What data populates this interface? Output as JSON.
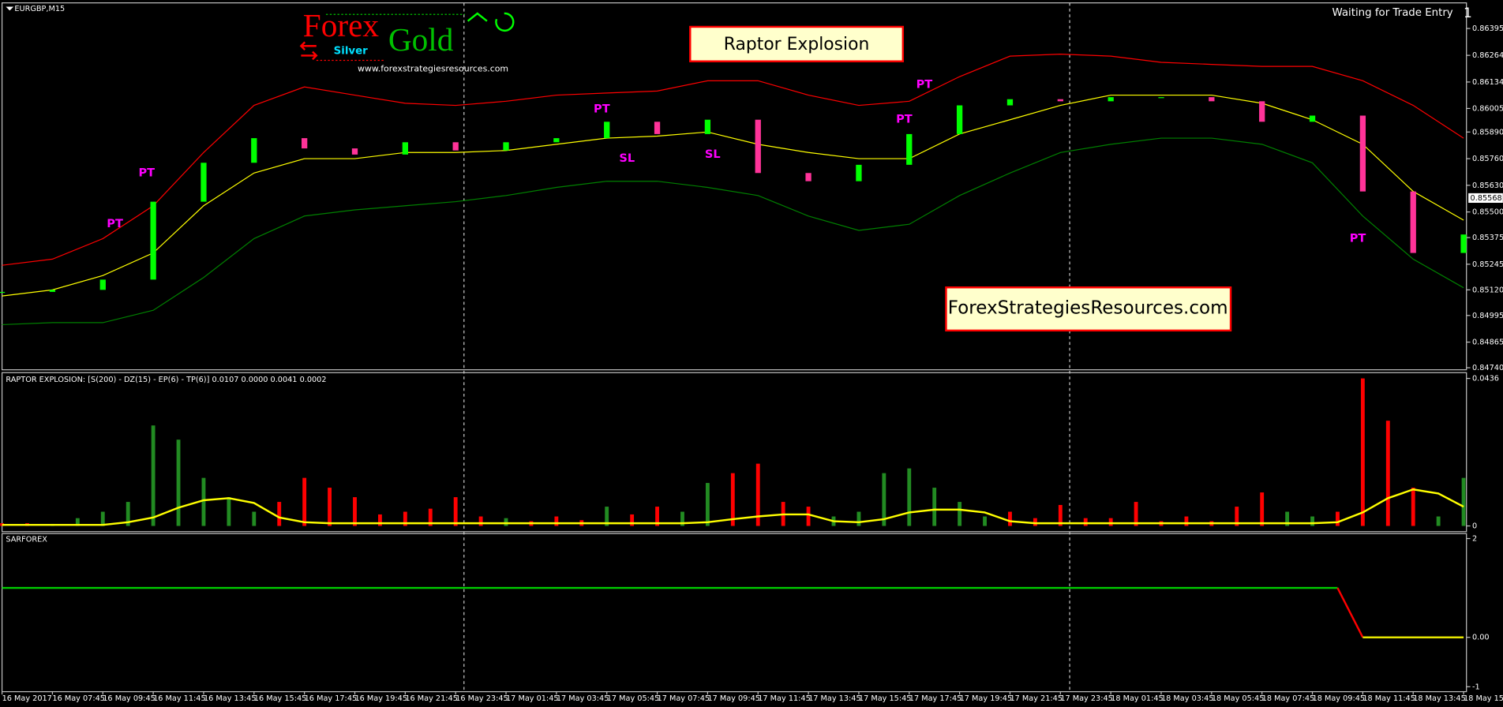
{
  "chart_data": [
    {
      "type": "candle",
      "title": "EURGBP,M15",
      "status": "Waiting for Trade Entry",
      "corner": "1",
      "banner": "Raptor Explosion",
      "watermark": "ForexStrategiesResources.com",
      "logo": {
        "forex": "Forex",
        "gold": "Gold",
        "silver": "Silver",
        "url": "www.forexstrategiesresources.com"
      },
      "categories": [
        "16 May 2017",
        "16 May 07:45",
        "16 May 09:45",
        "16 May 11:45",
        "16 May 13:45",
        "16 May 15:45",
        "16 May 17:45",
        "16 May 19:45",
        "16 May 21:45",
        "16 May 23:45",
        "17 May 01:45",
        "17 May 03:45",
        "17 May 05:45",
        "17 May 07:45",
        "17 May 09:45",
        "17 May 11:45",
        "17 May 13:45",
        "17 May 15:45",
        "17 May 17:45",
        "17 May 19:45",
        "17 May 21:45",
        "17 May 23:45",
        "18 May 01:45",
        "18 May 03:45",
        "18 May 05:45",
        "18 May 07:45",
        "18 May 09:45",
        "18 May 11:45",
        "18 May 13:45",
        "18 May 15"
      ],
      "values": [
        0.8511,
        0.8512,
        0.8517,
        0.8555,
        0.8574,
        0.8586,
        0.8581,
        0.8578,
        0.8584,
        0.858,
        0.8584,
        0.8586,
        0.8594,
        0.8588,
        0.8595,
        0.8569,
        0.8565,
        0.8573,
        0.8588,
        0.8602,
        0.8605,
        0.8604,
        0.8606,
        0.8606,
        0.8604,
        0.8594,
        0.8597,
        0.856,
        0.853,
        0.8539
      ],
      "up_color": "#00ff00",
      "down_color": "#ff3399",
      "series": [
        {
          "color": "#ff0000",
          "values": [
            0.8524,
            0.8527,
            0.8537,
            0.8553,
            0.8579,
            0.8602,
            0.8611,
            0.8607,
            0.8603,
            0.8602,
            0.8604,
            0.8607,
            0.8608,
            0.8609,
            0.8614,
            0.8614,
            0.8607,
            0.8602,
            0.8604,
            0.8616,
            0.8626,
            0.8627,
            0.8626,
            0.8623,
            0.8622,
            0.8621,
            0.8621,
            0.8614,
            0.8602,
            0.8586
          ]
        },
        {
          "color": "#ffff00",
          "values": [
            0.8509,
            0.8512,
            0.8519,
            0.853,
            0.8553,
            0.8569,
            0.8576,
            0.8576,
            0.8579,
            0.8579,
            0.858,
            0.8583,
            0.8586,
            0.8587,
            0.8589,
            0.8583,
            0.8579,
            0.8576,
            0.8576,
            0.8588,
            0.8595,
            0.8602,
            0.8607,
            0.8607,
            0.8607,
            0.8603,
            0.8595,
            0.8583,
            0.856,
            0.8546
          ]
        },
        {
          "color": "#008000",
          "values": [
            0.8495,
            0.8496,
            0.8496,
            0.8502,
            0.8518,
            0.8537,
            0.8548,
            0.8551,
            0.8553,
            0.8555,
            0.8558,
            0.8562,
            0.8565,
            0.8565,
            0.8562,
            0.8558,
            0.8548,
            0.8541,
            0.8544,
            0.8558,
            0.8569,
            0.8579,
            0.8583,
            0.8586,
            0.8586,
            0.8583,
            0.8574,
            0.8548,
            0.8527,
            0.8513
          ]
        }
      ],
      "annotations": [
        {
          "text": "PT",
          "x": 2.87,
          "y": 0.8569,
          "color": "#ff00ff"
        },
        {
          "text": "PT",
          "x": 2.24,
          "y": 0.8544,
          "color": "#ff00ff"
        },
        {
          "text": "PT",
          "x": 11.9,
          "y": 0.86,
          "color": "#ff00ff"
        },
        {
          "text": "PT",
          "x": 18.3,
          "y": 0.8612,
          "color": "#ff00ff"
        },
        {
          "text": "PT",
          "x": 17.9,
          "y": 0.8595,
          "color": "#ff00ff"
        },
        {
          "text": "PT",
          "x": 26.9,
          "y": 0.8537,
          "color": "#ff00ff"
        },
        {
          "text": "SL",
          "x": 12.4,
          "y": 0.8576,
          "color": "#ff00ff"
        },
        {
          "text": "SL",
          "x": 14.1,
          "y": 0.8578,
          "color": "#ff00ff"
        }
      ],
      "current_price": 0.85568,
      "ylim": [
        0.8473,
        0.8652
      ],
      "yticks": [
        0.86395,
        0.86264,
        0.86134,
        0.86005,
        {
          "value": 0.8589,
          "label": "0.85890"
        },
        {
          "value": 0.8576,
          "label": "0.85760"
        },
        {
          "value": 0.8563,
          "label": "0.85630"
        },
        {
          "value": 0.855,
          "label": "0.85500"
        },
        0.85375,
        0.85245,
        {
          "value": 0.8512,
          "label": "0.85120"
        },
        0.84995,
        0.84865,
        {
          "value": 0.8474,
          "label": "0.84740"
        }
      ]
    },
    {
      "type": "bar",
      "title": "RAPTOR EXPLOSION: [S(200) - DZ(15) - EP(6) - TP(6)] 0.0107 0.0000 0.0041 0.0002",
      "values": [
        0.0008,
        0.0008,
        0.0006,
        0.0023,
        0.0042,
        0.0071,
        0.0297,
        0.0255,
        0.0142,
        0.0085,
        0.0042,
        0.0071,
        0.0142,
        0.0113,
        0.0085,
        0.0034,
        0.0042,
        0.0051,
        0.0085,
        0.0028,
        0.0023,
        0.0014,
        0.0028,
        0.0017,
        0.0057,
        0.0034,
        0.0057,
        0.0042,
        0.0127,
        0.0156,
        0.0184,
        0.0071,
        0.0057,
        0.0028,
        0.0042,
        0.0156,
        0.017,
        0.0113,
        0.0071,
        0.0028,
        0.0042,
        0.0023,
        0.0062,
        0.0023,
        0.0023,
        0.0071,
        0.0014,
        0.0028,
        0.0014,
        0.0057,
        0.0099,
        0.0042,
        0.0028,
        0.0042,
        0.0436,
        0.0311,
        0.0113,
        0.0028,
        0.0142
      ],
      "colors": [
        "#ff0000",
        "#ff0000",
        "#228b22",
        "#228b22",
        "#228b22",
        "#228b22",
        "#228b22",
        "#228b22",
        "#228b22",
        "#228b22",
        "#228b22",
        "#ff0000",
        "#ff0000",
        "#ff0000",
        "#ff0000",
        "#ff0000",
        "#ff0000",
        "#ff0000",
        "#ff0000",
        "#ff0000",
        "#228b22",
        "#ff0000",
        "#ff0000",
        "#ff0000",
        "#228b22",
        "#ff0000",
        "#ff0000",
        "#228b22",
        "#228b22",
        "#ff0000",
        "#ff0000",
        "#ff0000",
        "#ff0000",
        "#228b22",
        "#228b22",
        "#228b22",
        "#228b22",
        "#228b22",
        "#228b22",
        "#228b22",
        "#ff0000",
        "#ff0000",
        "#ff0000",
        "#ff0000",
        "#ff0000",
        "#ff0000",
        "#ff0000",
        "#ff0000",
        "#ff0000",
        "#ff0000",
        "#ff0000",
        "#228b22",
        "#228b22",
        "#ff0000",
        "#ff0000",
        "#ff0000",
        "#ff0000",
        "#228b22",
        "#228b22"
      ],
      "signal": {
        "color": "#ffff00",
        "values": [
          0.0003,
          0.0003,
          0.0003,
          0.0003,
          0.0003,
          0.0011,
          0.0025,
          0.0054,
          0.0076,
          0.0082,
          0.0068,
          0.0025,
          0.0011,
          0.0008,
          0.0008,
          0.0008,
          0.0008,
          0.0008,
          0.0008,
          0.0008,
          0.0008,
          0.0008,
          0.0008,
          0.0008,
          0.0008,
          0.0008,
          0.0008,
          0.0008,
          0.0011,
          0.002,
          0.0028,
          0.0034,
          0.0034,
          0.0014,
          0.0011,
          0.002,
          0.004,
          0.0048,
          0.0048,
          0.004,
          0.0014,
          0.0008,
          0.0008,
          0.0008,
          0.0008,
          0.0008,
          0.0008,
          0.0008,
          0.0008,
          0.0008,
          0.0008,
          0.0008,
          0.0008,
          0.0011,
          0.004,
          0.0082,
          0.0108,
          0.0096,
          0.0057
        ]
      },
      "ylim": [
        -0.0017,
        0.0453
      ],
      "yticks": [
        0.0436,
        0
      ]
    },
    {
      "type": "line",
      "title": "SARFOREX",
      "series": [
        {
          "color": "#00cc00",
          "values": [
            1,
            1,
            1,
            1,
            1,
            1,
            1,
            1,
            1,
            1,
            1,
            1,
            1,
            1,
            1,
            1,
            1,
            1,
            1,
            1,
            1,
            1,
            1,
            1,
            1,
            1,
            1,
            1,
            1,
            1,
            1,
            1,
            1,
            1,
            1,
            1,
            1,
            1,
            1,
            1,
            1,
            1,
            1,
            1,
            1,
            1,
            1,
            1,
            1,
            1,
            1,
            1,
            1,
            1,
            null,
            null,
            null,
            null,
            null
          ]
        },
        {
          "color": "#ff0000",
          "values": [
            null,
            null,
            null,
            null,
            null,
            null,
            null,
            null,
            null,
            null,
            null,
            null,
            null,
            null,
            null,
            null,
            null,
            null,
            null,
            null,
            null,
            null,
            null,
            null,
            null,
            null,
            null,
            null,
            null,
            null,
            null,
            null,
            null,
            null,
            null,
            null,
            null,
            null,
            null,
            null,
            null,
            null,
            null,
            null,
            null,
            null,
            null,
            null,
            null,
            null,
            null,
            null,
            null,
            1,
            0,
            null,
            null,
            null,
            null
          ]
        },
        {
          "color": "#e6e600",
          "values": [
            null,
            null,
            null,
            null,
            null,
            null,
            null,
            null,
            null,
            null,
            null,
            null,
            null,
            null,
            null,
            null,
            null,
            null,
            null,
            null,
            null,
            null,
            null,
            null,
            null,
            null,
            null,
            null,
            null,
            null,
            null,
            null,
            null,
            null,
            null,
            null,
            null,
            null,
            null,
            null,
            null,
            null,
            null,
            null,
            null,
            null,
            null,
            null,
            null,
            null,
            null,
            null,
            null,
            null,
            0,
            0,
            0,
            0,
            0
          ]
        }
      ],
      "ylim": [
        -1.1,
        2.1
      ],
      "yticks": [
        2,
        {
          "value": 0,
          "label": "0.00"
        },
        -1
      ]
    }
  ]
}
